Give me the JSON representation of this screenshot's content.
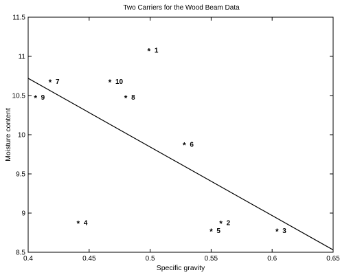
{
  "chart_data": {
    "type": "scatter",
    "title": "Two Carriers for the Wood Beam Data",
    "xlabel": "Specific gravity",
    "ylabel": "Moisture content",
    "xlim": [
      0.4,
      0.65
    ],
    "ylim": [
      8.5,
      11.5
    ],
    "xticks": [
      "0.4",
      "0.45",
      "0.5",
      "0.55",
      "0.6",
      "0.65"
    ],
    "yticks": [
      "8.5",
      "9",
      "9.5",
      "10",
      "10.5",
      "11",
      "11.5"
    ],
    "grid": false,
    "marker": "*",
    "points": [
      {
        "label": "1",
        "x": 0.499,
        "y": 11.1
      },
      {
        "label": "2",
        "x": 0.558,
        "y": 8.9
      },
      {
        "label": "3",
        "x": 0.604,
        "y": 8.8
      },
      {
        "label": "4",
        "x": 0.441,
        "y": 8.9
      },
      {
        "label": "5",
        "x": 0.55,
        "y": 8.8
      },
      {
        "label": "6",
        "x": 0.528,
        "y": 9.9
      },
      {
        "label": "7",
        "x": 0.418,
        "y": 10.7
      },
      {
        "label": "8",
        "x": 0.48,
        "y": 10.5
      },
      {
        "label": "9",
        "x": 0.406,
        "y": 10.5
      },
      {
        "label": "10",
        "x": 0.467,
        "y": 10.7
      }
    ],
    "line": {
      "x": [
        0.4,
        0.65
      ],
      "y": [
        10.72,
        8.53
      ]
    }
  }
}
